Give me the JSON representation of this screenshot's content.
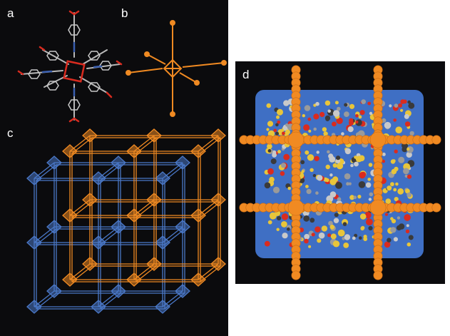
{
  "panels": {
    "a": {
      "label": "a"
    },
    "b": {
      "label": "b"
    },
    "c": {
      "label": "c"
    },
    "d": {
      "label": "d"
    }
  },
  "colors": {
    "background": "#0b0b0d",
    "framework_orange": "#f08a22",
    "framework_blue": "#4a78c8",
    "oxygen_red": "#d92b1f",
    "carbon_gray": "#9a9a9a",
    "guest_yellow": "#e8c53a"
  }
}
